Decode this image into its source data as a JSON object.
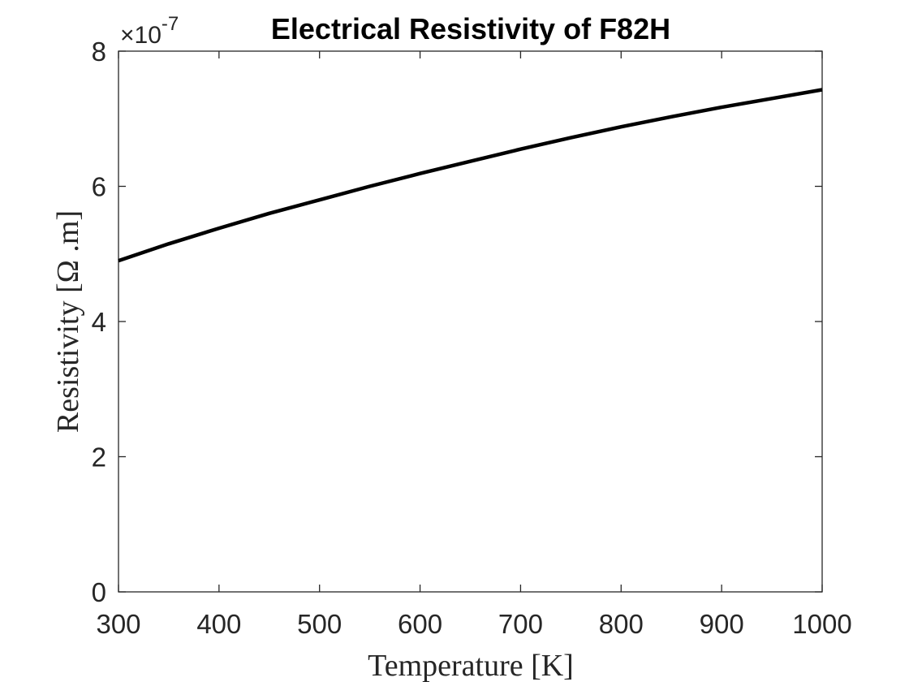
{
  "chart_data": {
    "type": "line",
    "title": "Electrical Resistivity of F82H",
    "xlabel": "Temperature [K]",
    "ylabel": "Resistivity [Ω .m]",
    "y_exponent": {
      "base": "×10",
      "power": "-7"
    },
    "xlim": [
      300,
      1000
    ],
    "ylim": [
      0,
      8e-07
    ],
    "x_ticks": [
      300,
      400,
      500,
      600,
      700,
      800,
      900,
      1000
    ],
    "x_tick_labels": [
      "300",
      "400",
      "500",
      "600",
      "700",
      "800",
      "900",
      "1000"
    ],
    "y_ticks": [
      0,
      2e-07,
      4e-07,
      6e-07,
      8e-07
    ],
    "y_tick_labels": [
      "0",
      "2",
      "4",
      "6",
      "8"
    ],
    "grid": false,
    "series": [
      {
        "color": "#000000",
        "x": [
          300,
          350,
          400,
          450,
          500,
          550,
          600,
          650,
          700,
          750,
          800,
          850,
          900,
          950,
          1000
        ],
        "y": [
          4.9e-07,
          5.15e-07,
          5.38e-07,
          5.6e-07,
          5.8e-07,
          6e-07,
          6.19e-07,
          6.37e-07,
          6.55e-07,
          6.72e-07,
          6.88e-07,
          7.03e-07,
          7.17e-07,
          7.3e-07,
          7.43e-07
        ]
      }
    ]
  }
}
